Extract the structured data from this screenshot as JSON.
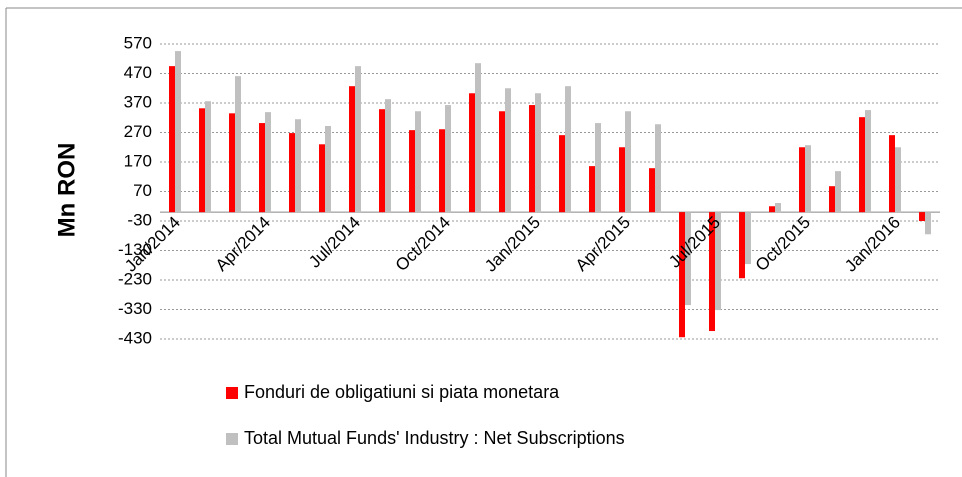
{
  "chart_data": {
    "type": "bar",
    "y_label": "Mn RON",
    "categories": [
      "Jan/2014",
      null,
      null,
      "Apr/2014",
      null,
      null,
      "Jul/2014",
      null,
      null,
      "Oct/2014",
      null,
      null,
      "Jan/2015",
      null,
      null,
      "Apr/2015",
      null,
      null,
      "Jul/2015",
      null,
      null,
      "Oct/2015",
      null,
      null,
      "Jan/2016",
      null
    ],
    "series": [
      {
        "name": "Fonduri de obligatiuni si piata monetara",
        "color": "#ff0000",
        "values": [
          495,
          352,
          335,
          302,
          268,
          230,
          427,
          349,
          278,
          281,
          403,
          342,
          363,
          261,
          156,
          220,
          149,
          -424,
          -403,
          -224,
          20,
          220,
          88,
          322,
          261,
          -30
        ]
      },
      {
        "name": "Total Mutual Funds' Industry : Net Subscriptions",
        "color": "#c0c0c0",
        "values": [
          546,
          376,
          461,
          339,
          315,
          292,
          495,
          383,
          342,
          363,
          505,
          420,
          403,
          427,
          302,
          342,
          298,
          -315,
          -332,
          -176,
          31,
          227,
          139,
          346,
          220,
          -75
        ]
      }
    ],
    "ylim": [
      -430,
      570
    ],
    "yticks": [
      570,
      470,
      370,
      270,
      170,
      70,
      -30,
      -130,
      -230,
      -330,
      -430
    ],
    "grid": true
  }
}
